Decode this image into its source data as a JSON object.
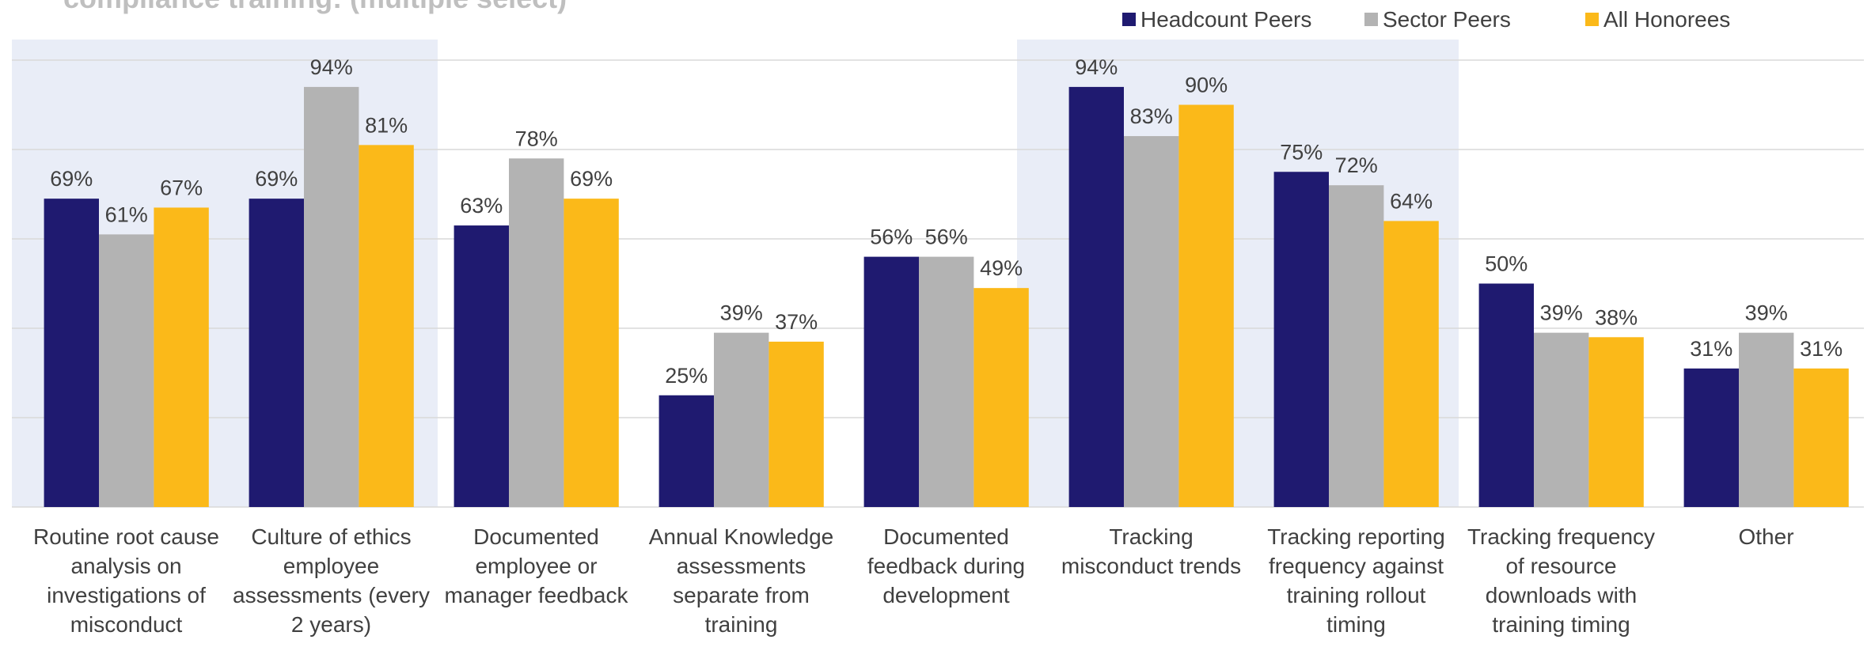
{
  "chart_data": {
    "type": "bar",
    "title": "compliance training: (multiple select)",
    "categories": [
      "Routine root cause analysis on investigations of misconduct",
      "Culture of ethics employee assessments (every 2 years)",
      "Documented employee or manager feedback",
      "Annual Knowledge assessments separate from training",
      "Documented feedback during development",
      "Tracking misconduct trends",
      "Tracking reporting frequency against training rollout timing",
      "Tracking frequency of resource downloads with training timing",
      "Other"
    ],
    "series": [
      {
        "name": "Headcount Peers",
        "color": "#1f1a70",
        "values": [
          69,
          69,
          63,
          25,
          56,
          94,
          75,
          50,
          31
        ],
        "value_labels": [
          "69%",
          "69%",
          "63%",
          "25%",
          "56%",
          "94%",
          "75%",
          "50%",
          "31%"
        ]
      },
      {
        "name": "Sector Peers",
        "color": "#b3b3b3",
        "values": [
          61,
          94,
          78,
          39,
          56,
          83,
          72,
          39,
          39
        ],
        "value_labels": [
          "61%",
          "94%",
          "78%",
          "39%",
          "56%",
          "83%",
          "72%",
          "39%",
          "39%"
        ]
      },
      {
        "name": "All Honorees",
        "color": "#fbb919",
        "values": [
          67,
          81,
          69,
          37,
          49,
          90,
          64,
          38,
          31
        ],
        "value_labels": [
          "67%",
          "81%",
          "69%",
          "37%",
          "49%",
          "90%",
          "64%",
          "38%",
          "31%"
        ]
      }
    ],
    "ylim": [
      0,
      100
    ],
    "yticks": [
      0,
      20,
      40,
      60,
      80,
      100
    ],
    "grid": true,
    "legend": "top-right"
  }
}
